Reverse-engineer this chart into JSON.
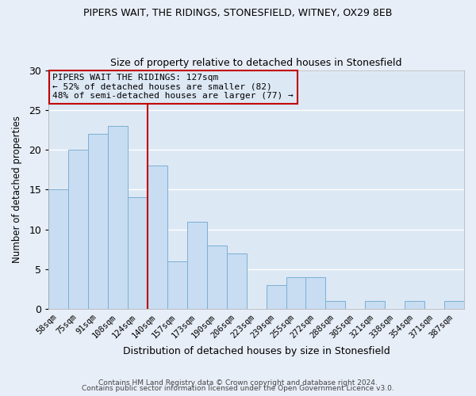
{
  "title": "PIPERS WAIT, THE RIDINGS, STONESFIELD, WITNEY, OX29 8EB",
  "subtitle": "Size of property relative to detached houses in Stonesfield",
  "xlabel": "Distribution of detached houses by size in Stonesfield",
  "ylabel": "Number of detached properties",
  "categories": [
    "58sqm",
    "75sqm",
    "91sqm",
    "108sqm",
    "124sqm",
    "140sqm",
    "157sqm",
    "173sqm",
    "190sqm",
    "206sqm",
    "223sqm",
    "239sqm",
    "255sqm",
    "272sqm",
    "288sqm",
    "305sqm",
    "321sqm",
    "338sqm",
    "354sqm",
    "371sqm",
    "387sqm"
  ],
  "values": [
    15,
    20,
    22,
    23,
    14,
    18,
    6,
    11,
    8,
    7,
    0,
    3,
    4,
    4,
    1,
    0,
    1,
    0,
    1,
    0,
    1
  ],
  "bar_color": "#c8ddf2",
  "bar_edge_color": "#7bafd4",
  "vline_x_index": 4,
  "vline_color": "#c00000",
  "annotation_title": "PIPERS WAIT THE RIDINGS: 127sqm",
  "annotation_line1": "← 52% of detached houses are smaller (82)",
  "annotation_line2": "48% of semi-detached houses are larger (77) →",
  "annotation_box_color": "#c00000",
  "ylim": [
    0,
    30
  ],
  "yticks": [
    0,
    5,
    10,
    15,
    20,
    25,
    30
  ],
  "footer1": "Contains HM Land Registry data © Crown copyright and database right 2024.",
  "footer2": "Contains public sector information licensed under the Open Government Licence v3.0.",
  "bg_color": "#e8eef8",
  "plot_bg_color": "#dde8f5",
  "grid_color": "#ffffff"
}
